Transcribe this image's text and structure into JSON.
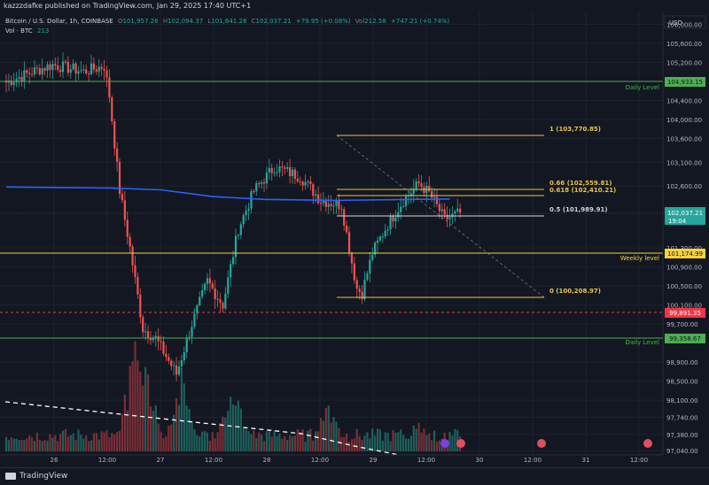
{
  "header": {
    "published": "kazzzdafke published on TradingView.com, Jan 29, 2025 17:40 UTC+1",
    "symbol_line": "Bitcoin / U.S. Dollar, 1h, COINBASE",
    "ohlc": {
      "o_label": "O",
      "o": "101,957.26",
      "h_label": "H",
      "h": "102,094.37",
      "l_label": "L",
      "l": "101,641.28",
      "c_label": "C",
      "c": "102,037.21",
      "change": "+79.95 (+0.08%)"
    },
    "vol_mini": {
      "label": "Vol",
      "value": "212.58",
      "change": "+747.21 (+0.74%)"
    },
    "vol_line": {
      "label": "Vol · BTC",
      "value": "213"
    }
  },
  "axis": {
    "currency": "USD",
    "y_ticks": [
      "106,000.00",
      "105,600.00",
      "105,200.00",
      "104,400.00",
      "104,000.00",
      "103,600.00",
      "103,100.00",
      "102,600.00",
      "101,300.00",
      "100,900.00",
      "100,500.00",
      "100,100.00",
      "99,700.00",
      "98,900.00",
      "98,500.00",
      "98,100.00",
      "97,740.00",
      "97,380.00",
      "97,040.00"
    ],
    "x_ticks": [
      "26",
      "12:00",
      "27",
      "12:00",
      "28",
      "12:00",
      "29",
      "12:00",
      "30",
      "12:00",
      "31",
      "12:00"
    ]
  },
  "levels": {
    "daily_top": {
      "price": "104,933.15",
      "label": "Daily Level",
      "color": "#4caf50"
    },
    "weekly": {
      "price": "101,174.99",
      "label": "Weekly level",
      "color": "#f7d33a"
    },
    "daily_bottom": {
      "price": "99,358.67",
      "label": "Daily Level",
      "color": "#4caf50"
    },
    "current": {
      "price": "102,037.21",
      "countdown": "19:04",
      "color": "#26a69a"
    },
    "dashed_red": {
      "price": "99,891.35",
      "color": "#f23645"
    }
  },
  "fib": {
    "levels": [
      {
        "label": "1 (103,770.85)"
      },
      {
        "label": "0.66 (102,559.81)"
      },
      {
        "label": "0.618 (102,410.21)"
      },
      {
        "label": "0.5 (101,989.91)"
      },
      {
        "label": "0 (100,208.97)"
      }
    ]
  },
  "footer": {
    "brand": "TradingView"
  },
  "colors": {
    "bg": "#131722",
    "up": "#26a69a",
    "down": "#ef5350",
    "ma": "#2962ff",
    "fib": "#e8c547",
    "daily": "#4caf50"
  },
  "chart_data": {
    "type": "candlestick",
    "ylim": [
      96950,
      106250
    ],
    "seed": 7,
    "anchors": [
      [
        0,
        104780
      ],
      [
        10,
        105000
      ],
      [
        18,
        105150
      ],
      [
        30,
        105010
      ],
      [
        38,
        105120
      ],
      [
        40,
        104500
      ],
      [
        44,
        102500
      ],
      [
        48,
        101300
      ],
      [
        53,
        99600
      ],
      [
        58,
        99400
      ],
      [
        66,
        98650
      ],
      [
        72,
        99700
      ],
      [
        78,
        100600
      ],
      [
        84,
        100100
      ],
      [
        90,
        101700
      ],
      [
        96,
        102500
      ],
      [
        104,
        103000
      ],
      [
        114,
        102800
      ],
      [
        122,
        102300
      ],
      [
        130,
        102200
      ],
      [
        134,
        101000
      ],
      [
        136,
        100450
      ],
      [
        138,
        100350
      ],
      [
        142,
        101200
      ],
      [
        148,
        101800
      ],
      [
        154,
        102300
      ],
      [
        160,
        102650
      ],
      [
        164,
        102450
      ],
      [
        170,
        101900
      ],
      [
        176,
        102040
      ]
    ],
    "ma": [
      [
        0,
        102580
      ],
      [
        40,
        102560
      ],
      [
        60,
        102520
      ],
      [
        80,
        102380
      ],
      [
        100,
        102320
      ],
      [
        128,
        102300
      ],
      [
        172,
        102330
      ]
    ],
    "volume_peaks": [
      [
        50,
        0.95
      ],
      [
        54,
        0.8
      ],
      [
        68,
        0.7
      ],
      [
        88,
        0.65
      ],
      [
        125,
        0.5
      ],
      [
        160,
        0.3
      ]
    ]
  }
}
